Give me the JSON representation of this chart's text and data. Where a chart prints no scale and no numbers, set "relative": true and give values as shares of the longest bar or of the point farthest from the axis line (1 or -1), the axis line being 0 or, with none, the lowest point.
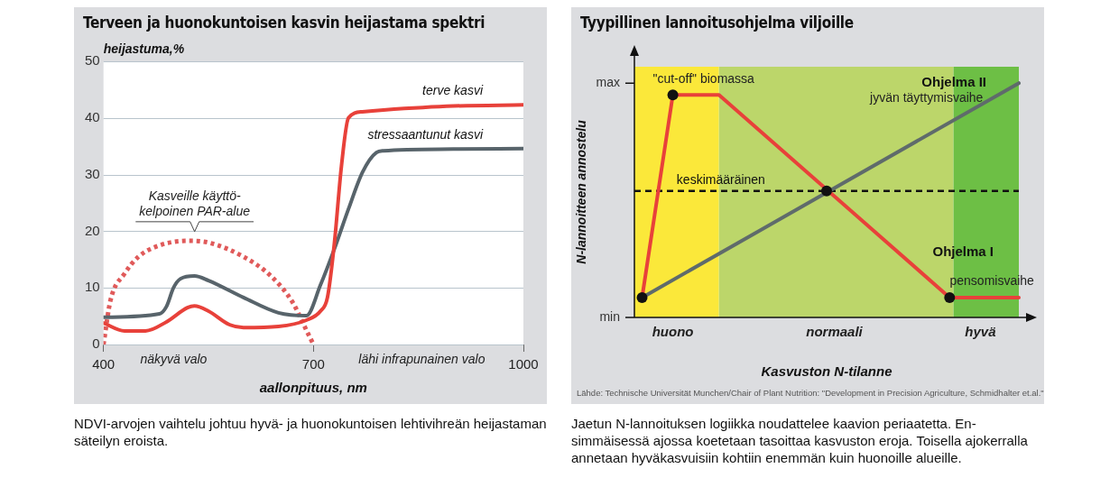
{
  "chart_data": [
    {
      "type": "line",
      "title": "Terveen ja huonokuntoisen kasvin heijastama spektri",
      "xlabel": "aallonpituus, nm",
      "ylabel": "heijastuma,%",
      "xlim": [
        400,
        1000
      ],
      "xticks": [
        400,
        700,
        1000
      ],
      "ylim": [
        0,
        50
      ],
      "yticks": [
        0,
        10,
        20,
        30,
        40,
        50
      ],
      "grid": "y",
      "marker": "none",
      "series": [
        {
          "name": "terve kasvi",
          "color": "#e8413a",
          "x": [
            400,
            430,
            460,
            490,
            520,
            530,
            550,
            580,
            600,
            650,
            690,
            710,
            720,
            730,
            740,
            750,
            770,
            800,
            900,
            1000
          ],
          "values": [
            3.8,
            2.4,
            2.4,
            4,
            6.5,
            6.8,
            5.9,
            3.5,
            3,
            3.2,
            4.3,
            5.9,
            8.3,
            18,
            31.5,
            40,
            41.1,
            41.4,
            42.1,
            42.3
          ]
        },
        {
          "name": "stressaantunut kasvi",
          "color": "#58646b",
          "x": [
            400,
            480,
            490,
            500,
            510,
            530,
            550,
            600,
            650,
            690,
            710,
            730,
            750,
            770,
            790,
            800,
            900,
            1000
          ],
          "values": [
            4.8,
            5.4,
            6.7,
            10,
            11.6,
            12.1,
            11.3,
            8.3,
            5.6,
            5.1,
            10.5,
            16.9,
            23.9,
            30.4,
            33.9,
            34.2,
            34.5,
            34.6
          ]
        },
        {
          "color": "#e05a5a",
          "line_style": "dotted",
          "x": [
            400,
            410,
            430,
            450,
            480,
            520,
            550,
            600,
            640,
            670,
            690,
            700
          ],
          "values": [
            0,
            7.8,
            12.5,
            15.5,
            17.5,
            18.3,
            18,
            15.5,
            12,
            7.5,
            2.5,
            0
          ]
        }
      ],
      "annotations": [
        "Kasveille käyttö-\nkelpoinen PAR-alue",
        "näkyvä valo",
        "lähi infrapunainen valo",
        "NDVI-arvojen vaihtelu johtuu hyvä- ja huonokuntoisen lehtivihreän heijastaman säteilyn eroista."
      ]
    },
    {
      "type": "line",
      "title": "Tyypillinen lannoitusohjelma viljoille",
      "xlabel": "Kasvuston N-tilanne",
      "ylabel": "N-lannoitteen annostelu",
      "relative": true,
      "categories": [
        null,
        null,
        null,
        null,
        null,
        "huono",
        null,
        null,
        null,
        null,
        null,
        null,
        null,
        null,
        null,
        null,
        null,
        null,
        null,
        null,
        null,
        null,
        null,
        null,
        null,
        null,
        "normaali",
        null,
        null,
        null,
        null,
        null,
        null,
        null,
        null,
        null,
        null,
        null,
        null,
        null,
        null,
        null,
        null,
        null,
        null,
        "hyvä",
        null,
        null,
        null,
        null,
        null
      ],
      "series": [
        {
          "name": "Ohjelma I",
          "color": "#e8413a",
          "marker": "none",
          "values": [
            null,
            0.085,
            null,
            null,
            null,
            0.95,
            null,
            null,
            null,
            null,
            null,
            0.95,
            null,
            null,
            null,
            null,
            null,
            null,
            null,
            null,
            null,
            null,
            null,
            null,
            null,
            null,
            null,
            null,
            null,
            null,
            null,
            null,
            null,
            null,
            null,
            null,
            null,
            null,
            null,
            null,
            null,
            0.085,
            null,
            null,
            null,
            null,
            null,
            null,
            null,
            null,
            0.085
          ]
        },
        {
          "name": "Ohjelma II",
          "color": "#5f6b6b",
          "marker": "none",
          "values": [
            null,
            0.085,
            null,
            null,
            null,
            null,
            null,
            null,
            null,
            null,
            null,
            null,
            null,
            null,
            null,
            null,
            null,
            null,
            null,
            null,
            null,
            null,
            null,
            null,
            null,
            null,
            null,
            null,
            null,
            null,
            null,
            null,
            null,
            null,
            null,
            null,
            null,
            null,
            null,
            null,
            null,
            null,
            null,
            null,
            null,
            null,
            null,
            null,
            null,
            null,
            1
          ]
        },
        {
          "type": "scatter",
          "color": "#111111",
          "marker": "circle",
          "values": [
            null,
            0.085,
            null,
            null,
            null,
            0.95,
            null,
            null,
            null,
            null,
            null,
            null,
            null,
            null,
            null,
            null,
            null,
            null,
            null,
            null,
            null,
            null,
            null,
            null,
            null,
            0.54,
            null,
            null,
            null,
            null,
            null,
            null,
            null,
            null,
            null,
            null,
            null,
            null,
            null,
            null,
            null,
            0.085,
            null,
            null,
            null,
            null,
            null,
            null,
            null,
            null,
            null
          ]
        }
      ],
      "ref_lines": [
        {
          "axis": "y",
          "value": 0.54,
          "label": "keskimääräinen",
          "color": "#111111",
          "line_style": "dashed"
        }
      ],
      "annotations": [
        "max",
        "min",
        "\"cut-off\" biomassa",
        "jyvän täyttymisvaihe",
        "pensomisvaihe",
        "Lähde: Technische Universität Munchen/Chair of Plant Nutrition: \"Development in Precision Agriculture, Schmidhalter et.al.\"",
        "Jaetun N-lannoituksen logiikka noudattelee kaavion periaatetta. En-simmäisessä ajossa koetetaan tasoittaa kasvuston eroja. Toisella ajokerralla annetaan hyväkasvuisiin kohtiin enemmän kuin huonoille alueille."
      ]
    }
  ]
}
